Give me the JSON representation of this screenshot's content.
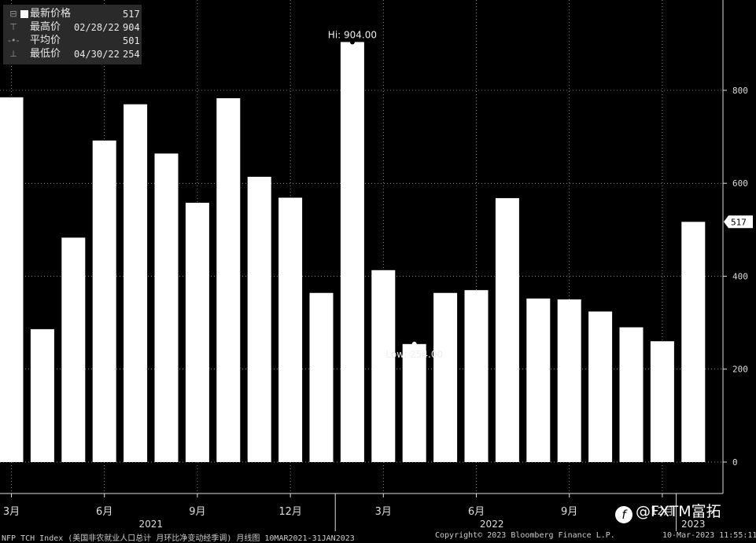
{
  "legend": {
    "rows": [
      {
        "label": "最新价格",
        "date": "",
        "value": "517"
      },
      {
        "label": "最高价",
        "date": "02/28/22",
        "value": "904"
      },
      {
        "label": "平均价",
        "date": "",
        "value": "501"
      },
      {
        "label": "最低价",
        "date": "04/30/22",
        "value": "254"
      }
    ]
  },
  "chart_data": {
    "type": "bar",
    "categories": [
      "2021-03",
      "2021-04",
      "2021-05",
      "2021-06",
      "2021-07",
      "2021-08",
      "2021-09",
      "2021-10",
      "2021-11",
      "2021-12",
      "2022-01",
      "2022-02",
      "2022-03",
      "2022-04",
      "2022-05",
      "2022-06",
      "2022-07",
      "2022-08",
      "2022-09",
      "2022-10",
      "2022-11",
      "2022-12",
      "2023-01"
    ],
    "values": [
      785,
      286,
      483,
      692,
      770,
      664,
      558,
      783,
      614,
      569,
      364,
      904,
      413,
      254,
      364,
      370,
      568,
      352,
      350,
      324,
      290,
      260,
      517
    ],
    "ylim": [
      -60,
      960
    ],
    "yticks": [
      0,
      200,
      400,
      600,
      800
    ],
    "hi_label": "Hi: 904.00",
    "low_label": "Low: 254.00",
    "last_label": "517",
    "month_ticks": [
      {
        "index": 0,
        "label": "3月"
      },
      {
        "index": 3,
        "label": "6月"
      },
      {
        "index": 6,
        "label": "9月"
      },
      {
        "index": 9,
        "label": "12月"
      },
      {
        "index": 12,
        "label": "3月"
      },
      {
        "index": 15,
        "label": "6月"
      },
      {
        "index": 18,
        "label": "9月"
      },
      {
        "index": 21,
        "label": "12月"
      }
    ],
    "year_labels": [
      {
        "label": "2021",
        "center_index": 4.5
      },
      {
        "label": "2022",
        "center_index": 15.5
      },
      {
        "label": "2023",
        "center_index": 22
      }
    ],
    "year_dividers": [
      10,
      21
    ],
    "bar_color": "#ffffff",
    "grid_color": "#ffffff"
  },
  "footer": {
    "left": "NFP TCH Index (美国非农就业人口总计 月环比净变动经季调)  月线图 10MAR2021-31JAN2023",
    "center": "Copyright© 2023 Bloomberg Finance L.P.",
    "right": "10-Mar-2023 11:55:11"
  },
  "watermark": {
    "text": "@FXTM富拓",
    "icon": "f-logo-icon"
  }
}
